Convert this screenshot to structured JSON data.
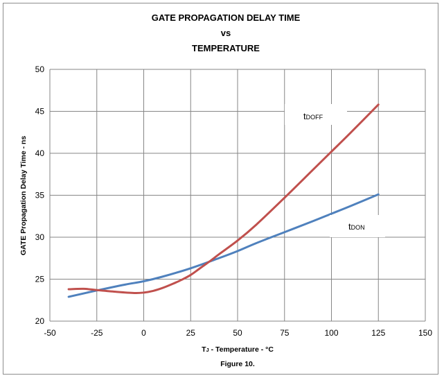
{
  "chart_data": {
    "type": "line",
    "title": [
      "GATE PROPAGATION DELAY TIME",
      "vs",
      "TEMPERATURE"
    ],
    "xlabel": {
      "main": "T",
      "sub": "J",
      "rest": " - Temperature - °C"
    },
    "ylabel": "GATE Propagation Delay Time - ns",
    "caption": "Figure 10.",
    "xlim": [
      -50,
      150
    ],
    "ylim": [
      20,
      50
    ],
    "xticks": [
      -50,
      -25,
      0,
      25,
      50,
      75,
      100,
      125,
      150
    ],
    "yticks": [
      20,
      25,
      30,
      35,
      40,
      45,
      50
    ],
    "grid": true,
    "series": [
      {
        "name": "tDOFF",
        "label_main": "t",
        "label_sub": "DOFF",
        "color": "#c0504d",
        "x": [
          -40,
          -32,
          -25,
          -15,
          -5,
          0,
          5,
          10,
          15,
          20,
          25,
          30,
          35,
          40,
          50,
          60,
          75,
          90,
          100,
          110,
          125
        ],
        "y": [
          23.8,
          23.85,
          23.7,
          23.5,
          23.35,
          23.4,
          23.6,
          23.95,
          24.4,
          24.9,
          25.5,
          26.3,
          27.1,
          27.95,
          29.6,
          31.5,
          34.7,
          38.0,
          40.2,
          42.4,
          45.8
        ]
      },
      {
        "name": "tDON",
        "label_main": "t",
        "label_sub": "DON",
        "color": "#4f81bd",
        "x": [
          -40,
          -25,
          -10,
          0,
          10,
          25,
          40,
          50,
          60,
          75,
          90,
          100,
          110,
          125
        ],
        "y": [
          22.9,
          23.65,
          24.35,
          24.75,
          25.3,
          26.3,
          27.5,
          28.35,
          29.3,
          30.6,
          31.9,
          32.8,
          33.7,
          35.1
        ]
      }
    ]
  }
}
